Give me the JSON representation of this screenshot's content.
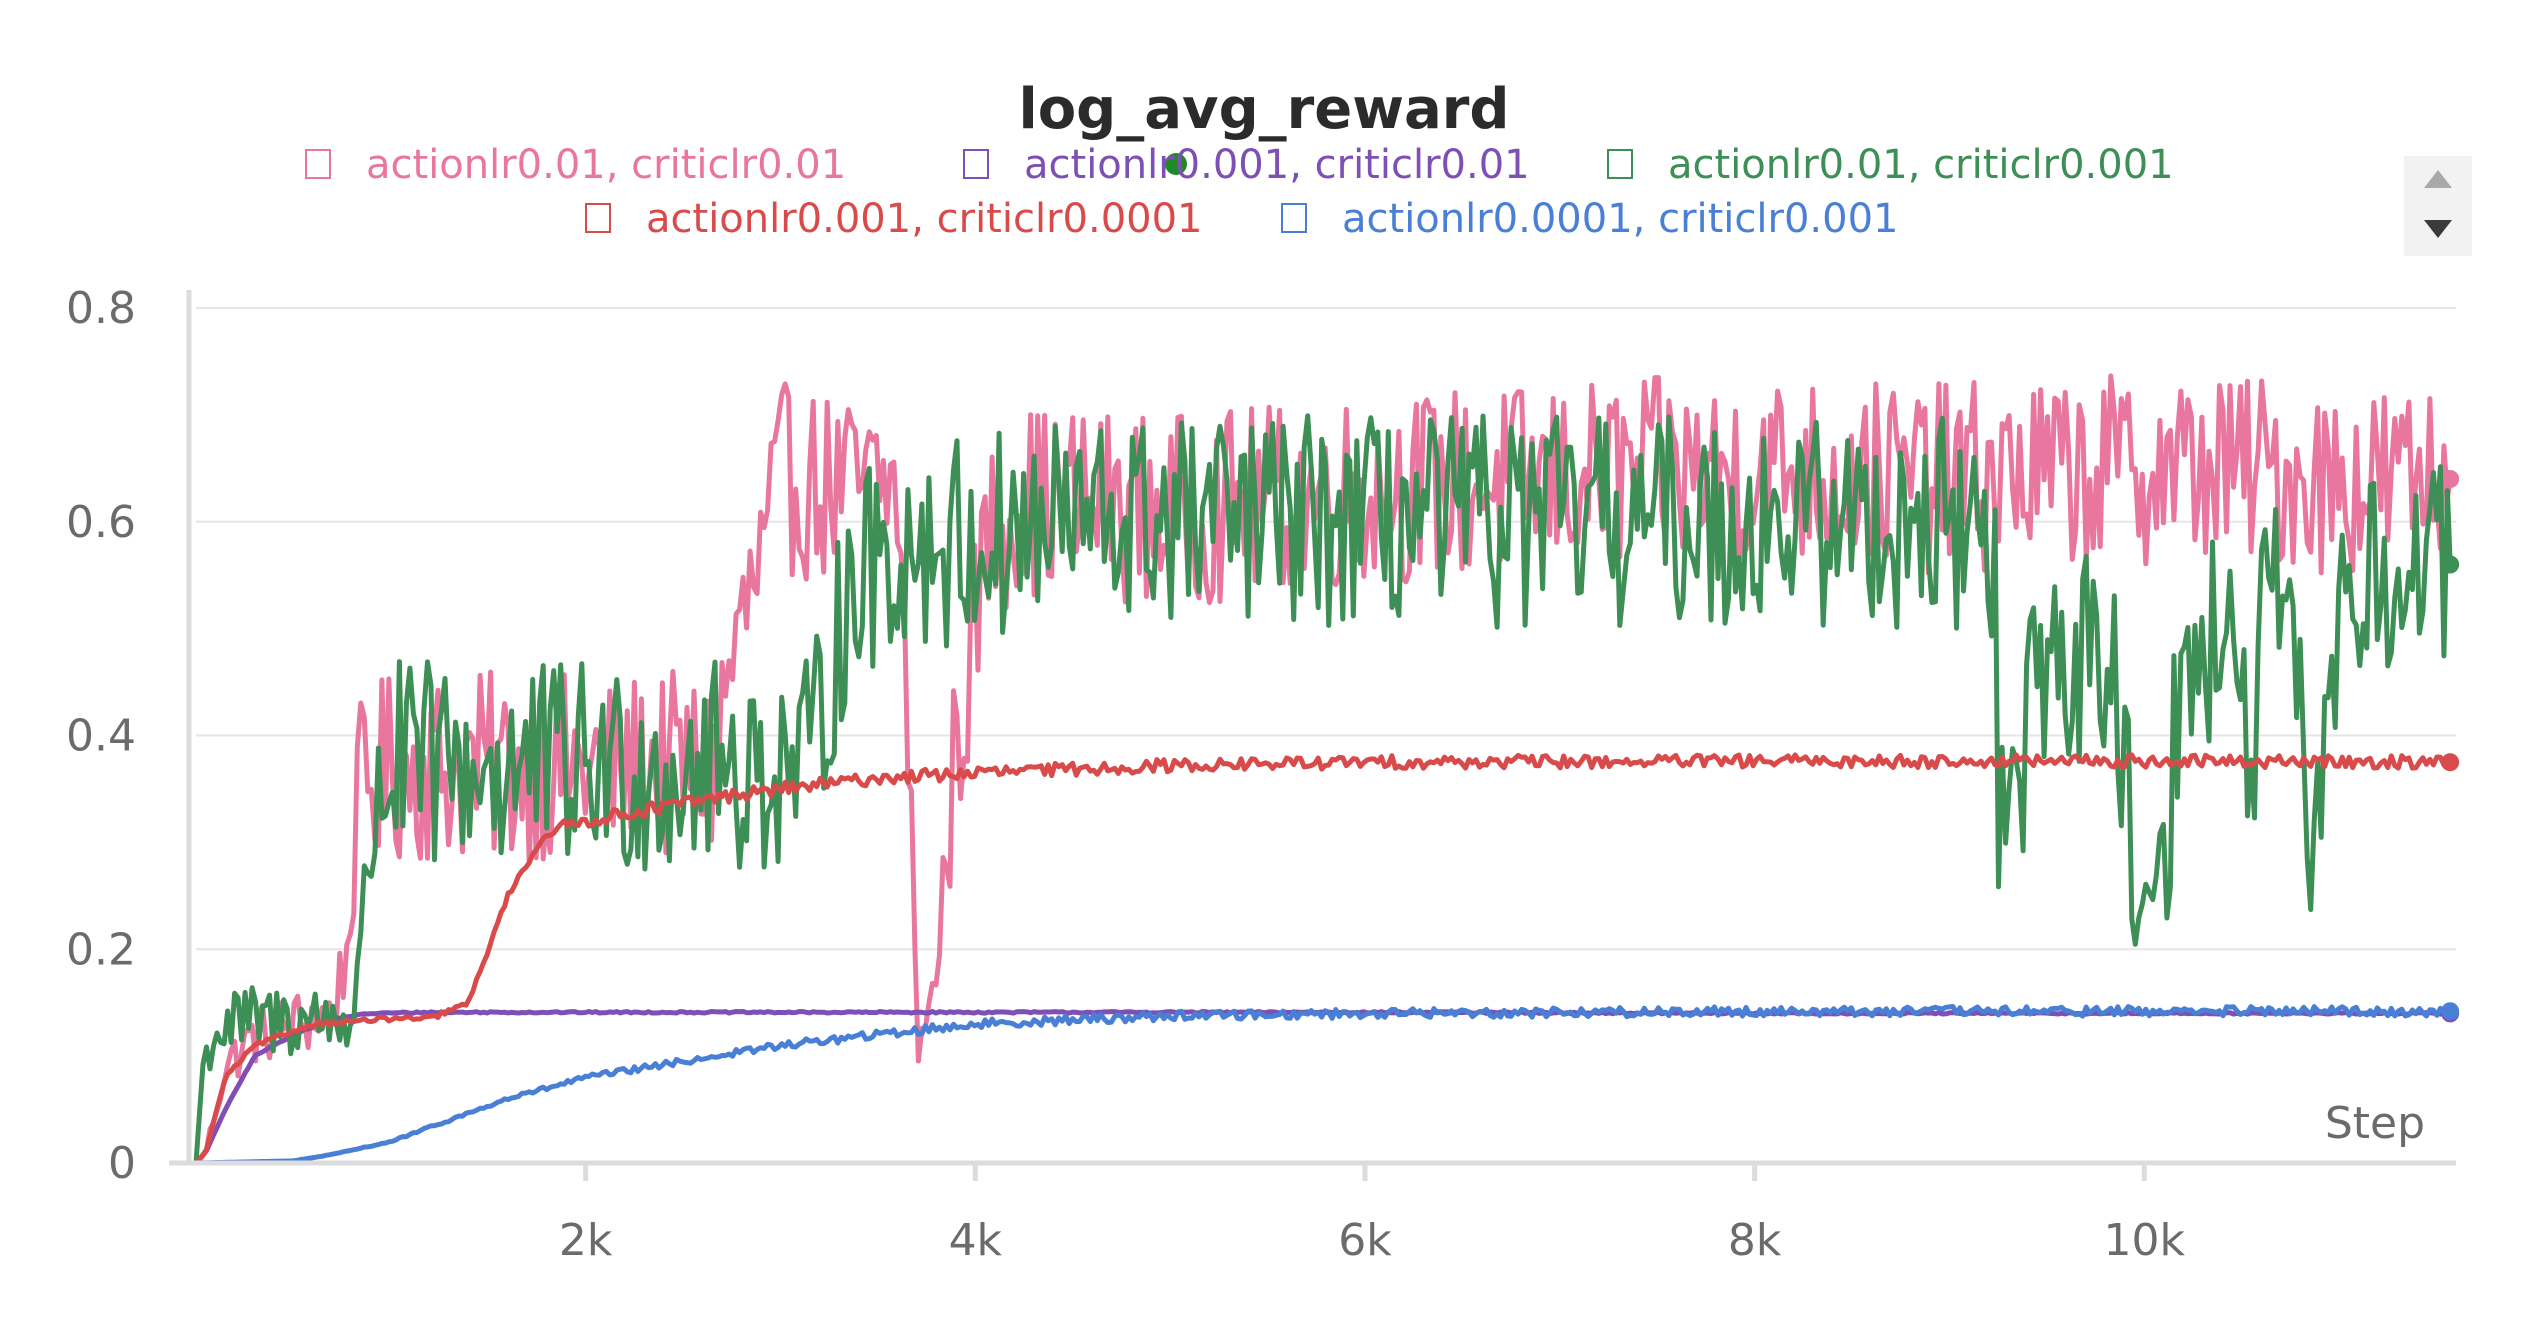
{
  "chart_data": {
    "type": "line",
    "title": "log_avg_reward",
    "xlabel": "Step",
    "ylabel": "",
    "xlim": [
      0,
      11600
    ],
    "ylim": [
      0,
      0.8
    ],
    "x_ticks": [
      {
        "value": 2000,
        "label": "2k"
      },
      {
        "value": 4000,
        "label": "4k"
      },
      {
        "value": 6000,
        "label": "6k"
      },
      {
        "value": 8000,
        "label": "8k"
      },
      {
        "value": 10000,
        "label": "10k"
      }
    ],
    "y_ticks": [
      {
        "value": 0,
        "label": "0"
      },
      {
        "value": 0.2,
        "label": "0.2"
      },
      {
        "value": 0.4,
        "label": "0.4"
      },
      {
        "value": 0.6,
        "label": "0.6"
      },
      {
        "value": 0.8,
        "label": "0.8"
      }
    ],
    "grid": true,
    "legend_position": "top-center",
    "legend_status_color": "#1f8b24",
    "series": [
      {
        "name": "actionlr0.01, criticlr0.01",
        "color": "#e8769e",
        "noise": 0.09,
        "x": [
          0,
          50,
          150,
          300,
          500,
          700,
          780,
          850,
          1000,
          1500,
          2000,
          2500,
          2650,
          2750,
          2900,
          3000,
          3300,
          3600,
          3680,
          3700,
          3730,
          3800,
          3850,
          3900,
          4000,
          4050,
          4200,
          4500,
          5000,
          6000,
          7000,
          8000,
          9000,
          10000,
          10500,
          11000,
          11570
        ],
        "y": [
          0,
          0.01,
          0.09,
          0.12,
          0.13,
          0.14,
          0.2,
          0.35,
          0.37,
          0.37,
          0.37,
          0.37,
          0.37,
          0.47,
          0.56,
          0.64,
          0.63,
          0.63,
          0.3,
          0.06,
          0.15,
          0.16,
          0.31,
          0.38,
          0.5,
          0.58,
          0.62,
          0.62,
          0.61,
          0.63,
          0.64,
          0.65,
          0.64,
          0.65,
          0.65,
          0.64,
          0.64
        ]
      },
      {
        "name": "actionlr0.001, criticlr0.01",
        "color": "#7e4fb4",
        "noise": 0.002,
        "x": [
          0,
          50,
          150,
          300,
          500,
          700,
          900,
          1200,
          2000,
          4000,
          6000,
          8000,
          10000,
          11570
        ],
        "y": [
          0,
          0.01,
          0.05,
          0.1,
          0.12,
          0.135,
          0.14,
          0.141,
          0.141,
          0.141,
          0.141,
          0.14,
          0.14,
          0.14
        ]
      },
      {
        "name": "actionlr0.01, criticlr0.001",
        "color": "#3d8f55",
        "noise": 0.1,
        "x": [
          0,
          30,
          80,
          200,
          500,
          800,
          850,
          880,
          950,
          1000,
          1500,
          2000,
          2500,
          2900,
          3050,
          3150,
          3300,
          3400,
          3700,
          4000,
          4500,
          5000,
          6000,
          7000,
          8000,
          9000,
          9230,
          9250,
          9300,
          9380,
          9400,
          9600,
          9800,
          9900,
          9950,
          10000,
          10100,
          10200,
          10400,
          10500,
          10550,
          10600,
          10700,
          10800,
          10850,
          11000,
          11570
        ],
        "y": [
          0,
          0.08,
          0.12,
          0.13,
          0.135,
          0.135,
          0.2,
          0.3,
          0.36,
          0.37,
          0.37,
          0.37,
          0.37,
          0.37,
          0.37,
          0.37,
          0.5,
          0.55,
          0.58,
          0.58,
          0.6,
          0.6,
          0.6,
          0.6,
          0.6,
          0.6,
          0.58,
          0.33,
          0.33,
          0.33,
          0.47,
          0.47,
          0.47,
          0.4,
          0.2,
          0.27,
          0.3,
          0.45,
          0.5,
          0.42,
          0.37,
          0.5,
          0.52,
          0.4,
          0.26,
          0.53,
          0.56
        ]
      },
      {
        "name": "actionlr0.001, criticlr0.0001",
        "color": "#d94b4b",
        "noise": 0.006,
        "x": [
          0,
          50,
          150,
          300,
          600,
          1000,
          1200,
          1400,
          1500,
          1600,
          1700,
          1800,
          2000,
          2300,
          2600,
          3000,
          3500,
          4000,
          5000,
          6000,
          8000,
          10000,
          11570
        ],
        "y": [
          0,
          0.01,
          0.08,
          0.11,
          0.13,
          0.135,
          0.135,
          0.15,
          0.2,
          0.25,
          0.28,
          0.31,
          0.32,
          0.33,
          0.34,
          0.35,
          0.36,
          0.365,
          0.372,
          0.375,
          0.376,
          0.376,
          0.375
        ]
      },
      {
        "name": "actionlr0.0001, criticlr0.001",
        "color": "#4a7fd6",
        "noise": 0.012,
        "x": [
          0,
          500,
          700,
          1000,
          1300,
          1600,
          2000,
          2500,
          3000,
          3500,
          4000,
          5000,
          6000,
          8000,
          10000,
          11570
        ],
        "y": [
          0,
          0.002,
          0.008,
          0.02,
          0.04,
          0.06,
          0.08,
          0.095,
          0.11,
          0.12,
          0.13,
          0.138,
          0.14,
          0.142,
          0.142,
          0.142
        ]
      }
    ]
  }
}
